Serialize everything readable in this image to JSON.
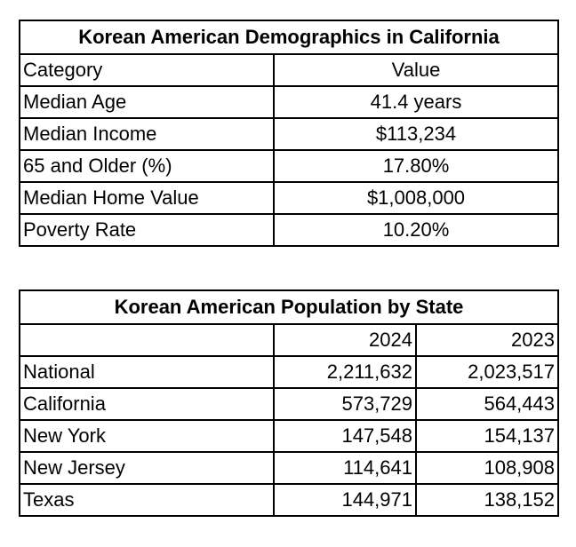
{
  "demographics": {
    "title": "Korean American Demographics in California",
    "header": [
      "Category",
      "Value"
    ],
    "rows": [
      [
        "Median Age",
        "41.4 years"
      ],
      [
        "Median Income",
        "$113,234"
      ],
      [
        "65 and Older (%)",
        "17.80%"
      ],
      [
        "Median Home Value",
        "$1,008,000"
      ],
      [
        "Poverty Rate",
        "10.20%"
      ]
    ]
  },
  "population": {
    "title": "Korean American Population by State",
    "header": [
      "2024",
      "2023"
    ],
    "rows": [
      [
        "National",
        "2,211,632",
        "2,023,517"
      ],
      [
        "California",
        "573,729",
        "564,443"
      ],
      [
        "New York",
        "147,548",
        "154,137"
      ],
      [
        "New Jersey",
        "114,641",
        "108,908"
      ],
      [
        "Texas",
        "144,971",
        "138,152"
      ]
    ]
  }
}
